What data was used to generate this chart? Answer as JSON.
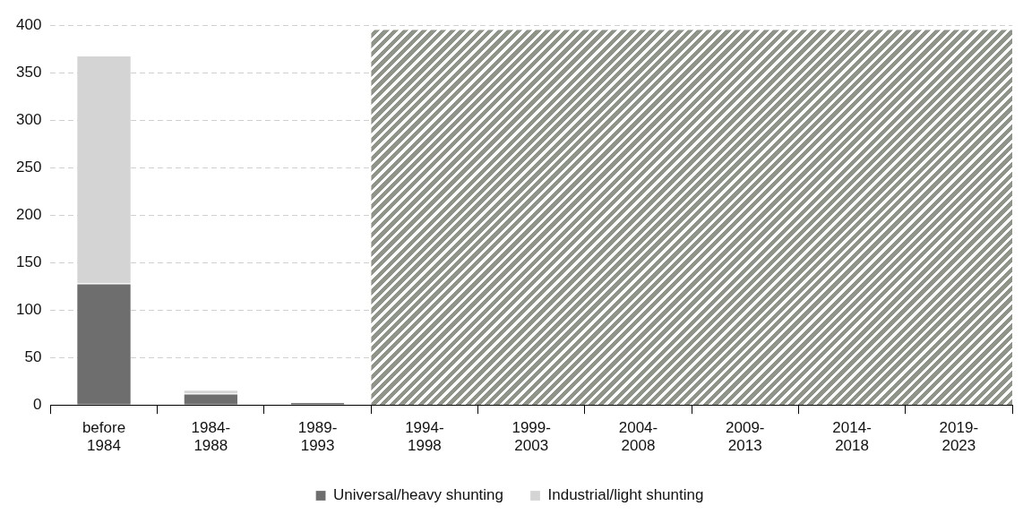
{
  "chart_data": {
    "type": "bar",
    "stacked": true,
    "categories": [
      "before 1984",
      "1984-1988",
      "1989-1993",
      "1994-1998",
      "1999-2003",
      "2004-2008",
      "2009-2013",
      "2014-2018",
      "2019-2023"
    ],
    "series": [
      {
        "name": "Universal/heavy shunting",
        "color": "#6e6e6e",
        "values": [
          128,
          12,
          3,
          null,
          null,
          null,
          null,
          null,
          null
        ]
      },
      {
        "name": "Industrial/light shunting",
        "color": "#d4d4d4",
        "values": [
          240,
          4,
          0,
          null,
          null,
          null,
          null,
          null,
          null
        ]
      }
    ],
    "ylim": [
      0,
      400
    ],
    "yticks": [
      0,
      50,
      100,
      150,
      200,
      250,
      300,
      350,
      400
    ],
    "bands": [
      {
        "axis": "x",
        "from": "1994-1998",
        "to": "2019-2023",
        "color": "#8f9488"
      }
    ],
    "grid": "y",
    "legend": "bottom"
  }
}
